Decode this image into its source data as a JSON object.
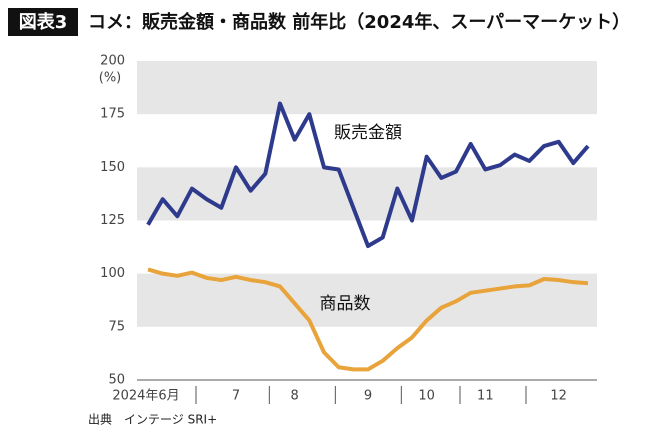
{
  "chart_data": {
    "type": "line",
    "badge": "図表3",
    "title": "コメ：販売金額・商品数 前年比（2024年、スーパーマーケット）",
    "y_label": "(%)",
    "source": "出典　インテージ SRI+",
    "categories": [
      "2024年6月",
      null,
      null,
      null,
      null,
      null,
      "7",
      null,
      null,
      null,
      "8",
      null,
      null,
      null,
      null,
      "9",
      null,
      null,
      null,
      "10",
      null,
      null,
      null,
      "11",
      null,
      null,
      null,
      null,
      "12",
      null,
      null
    ],
    "series": [
      {
        "name": "販売金額",
        "color": "#2e3a8c",
        "values": [
          123,
          135,
          127,
          140,
          135,
          131,
          150,
          139,
          147,
          180,
          163,
          175,
          150,
          149,
          131,
          113,
          117,
          140,
          125,
          155,
          145,
          148,
          161,
          149,
          151,
          156,
          153,
          160,
          162,
          152,
          160
        ]
      },
      {
        "name": "商品数",
        "color": "#e8a33a",
        "values": [
          102,
          100,
          99,
          100.5,
          98,
          97,
          98.5,
          97,
          96,
          94,
          86,
          78,
          63,
          56,
          55,
          55,
          59,
          65,
          70,
          78,
          84,
          87,
          91,
          92,
          93,
          94,
          94.5,
          97.5,
          97,
          96,
          95.5
        ]
      }
    ],
    "ylim": [
      50,
      200
    ],
    "yticks": [
      50,
      75,
      100,
      125,
      150,
      175,
      200
    ],
    "banded_grid": true
  }
}
